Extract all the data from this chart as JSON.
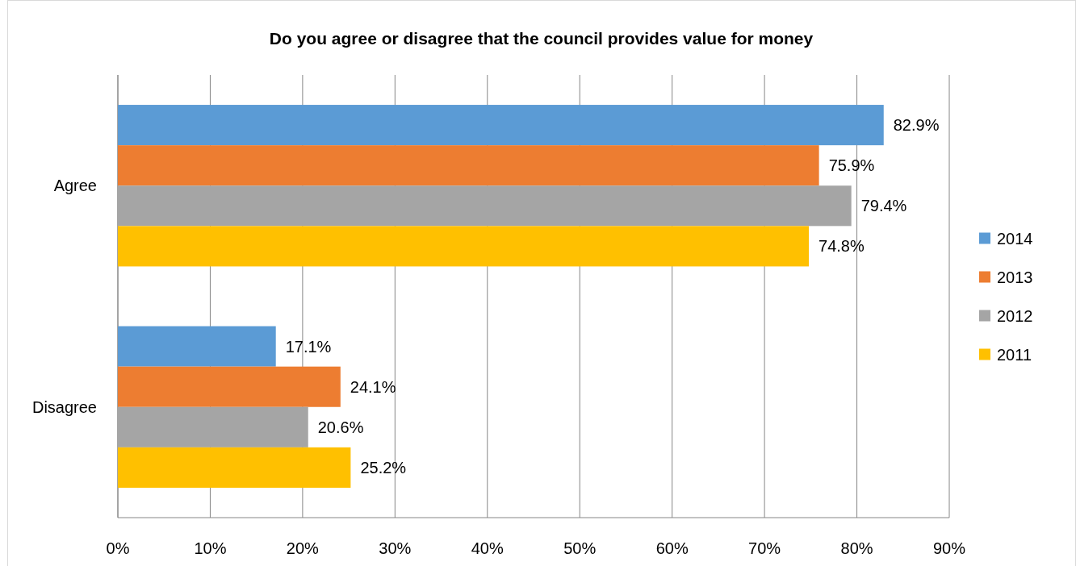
{
  "chart_data": {
    "type": "bar",
    "orientation": "horizontal",
    "title": "Do you agree or disagree that the council provides value for money",
    "categories": [
      "Agree",
      "Disagree"
    ],
    "series": [
      {
        "name": "2014",
        "color": "#5b9bd5",
        "values": [
          82.9,
          17.1
        ],
        "value_labels": [
          "82.9%",
          "17.1%"
        ]
      },
      {
        "name": "2013",
        "color": "#ed7d31",
        "values": [
          75.9,
          24.1
        ],
        "value_labels": [
          "75.9%",
          "24.1%"
        ]
      },
      {
        "name": "2012",
        "color": "#a5a5a5",
        "values": [
          79.4,
          20.6
        ],
        "value_labels": [
          "79.4%",
          "20.6%"
        ]
      },
      {
        "name": "2011",
        "color": "#ffc000",
        "values": [
          74.8,
          25.2
        ],
        "value_labels": [
          "74.8%",
          "25.2%"
        ]
      }
    ],
    "xlim": [
      0,
      90
    ],
    "xticks": [
      {
        "value": 0,
        "label": "0%"
      },
      {
        "value": 10,
        "label": "10%"
      },
      {
        "value": 20,
        "label": "20%"
      },
      {
        "value": 30,
        "label": "30%"
      },
      {
        "value": 40,
        "label": "40%"
      },
      {
        "value": 50,
        "label": "50%"
      },
      {
        "value": 60,
        "label": "60%"
      },
      {
        "value": 70,
        "label": "70%"
      },
      {
        "value": 80,
        "label": "80%"
      },
      {
        "value": 90,
        "label": "90%"
      }
    ],
    "grid": "x",
    "legend": "right"
  }
}
